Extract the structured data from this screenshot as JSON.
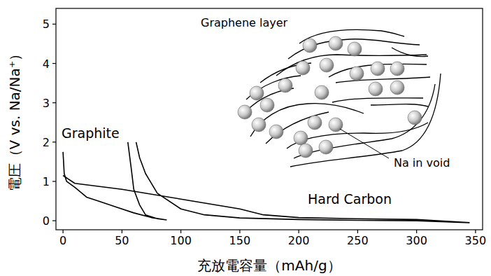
{
  "chart_data": {
    "type": "line",
    "x_label": "充放電容量（mAh/g）",
    "y_label": "電圧（V vs. Na/Na⁺）",
    "xlim": [
      -6,
      356
    ],
    "ylim": [
      -0.23,
      5.4
    ],
    "xticks": [
      0,
      50,
      100,
      150,
      200,
      250,
      300,
      350
    ],
    "yticks": [
      0,
      1,
      2,
      3,
      4,
      5
    ],
    "grid": false,
    "series": [
      {
        "name": "Graphite",
        "color": "#000000",
        "line_style": "solid",
        "x": [
          0,
          1,
          3,
          10,
          20,
          30,
          45,
          60,
          75,
          88,
          null,
          88,
          80,
          70,
          65,
          60,
          58,
          55
        ],
        "values": [
          1.75,
          1.2,
          1.0,
          0.85,
          0.6,
          0.5,
          0.35,
          0.2,
          0.08,
          0.02,
          null,
          0.02,
          0.05,
          0.15,
          0.4,
          0.8,
          1.3,
          2.0
        ]
      },
      {
        "name": "Hard Carbon",
        "color": "#000000",
        "line_style": "solid",
        "x": [
          0,
          10,
          50,
          100,
          150,
          170,
          200,
          250,
          300,
          345,
          null,
          345,
          300,
          250,
          200,
          150,
          120,
          100,
          80,
          70,
          65,
          62
        ],
        "values": [
          1.15,
          0.95,
          0.8,
          0.55,
          0.3,
          0.15,
          0.08,
          0.05,
          0.03,
          -0.05,
          null,
          -0.05,
          0.0,
          0.01,
          0.03,
          0.07,
          0.15,
          0.3,
          0.7,
          1.2,
          1.6,
          2.0
        ]
      }
    ],
    "annotations": [
      {
        "text": "Graphene layer"
      },
      {
        "text": "Na in void"
      }
    ]
  }
}
